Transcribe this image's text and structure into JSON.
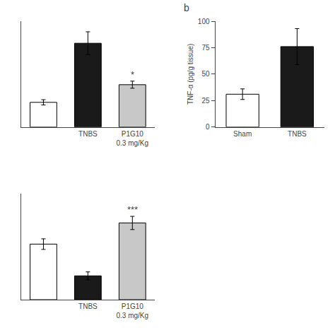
{
  "chart_data": [
    {
      "type": "bar",
      "categories": [
        null,
        "TNBS",
        "P1G10\n0.3 mg/Kg"
      ],
      "values": [
        28,
        95,
        48
      ],
      "errors": [
        3,
        13,
        4
      ],
      "colors": [
        "#ffffff",
        "#1a1a1a",
        "#c8c8c8"
      ],
      "annotations": [
        {
          "category": "P1G10\n0.3 mg/Kg",
          "text": "*"
        }
      ],
      "ylim": [
        0,
        120
      ],
      "tick_labels": "x",
      "grid": false
    },
    {
      "type": "bar",
      "title": "b",
      "categories": [
        "Sham",
        "TNBS"
      ],
      "values": [
        31,
        76
      ],
      "errors": [
        5,
        17
      ],
      "colors": [
        "#ffffff",
        "#1a1a1a"
      ],
      "y_label": "TNF-α (pg/g tissue)",
      "ylim": [
        0,
        100
      ],
      "yticks": [
        0,
        25,
        50,
        75,
        100
      ],
      "grid": false
    },
    {
      "type": "bar",
      "categories": [
        null,
        "TNBS",
        "P1G10\n0.3 mg/Kg"
      ],
      "values": [
        42,
        18,
        58
      ],
      "errors": [
        4,
        3,
        5
      ],
      "colors": [
        "#ffffff",
        "#1a1a1a",
        "#c8c8c8"
      ],
      "annotations": [
        {
          "category": "P1G10\n0.3 mg/Kg",
          "text": "***"
        }
      ],
      "ylim": [
        0,
        80
      ],
      "tick_labels": "x",
      "grid": false
    }
  ]
}
